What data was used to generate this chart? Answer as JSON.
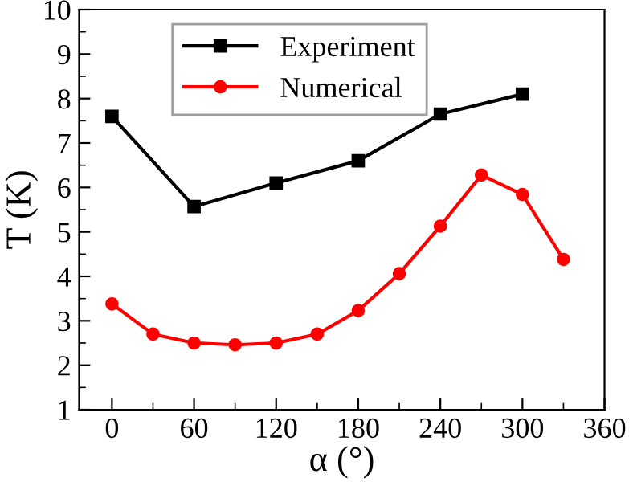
{
  "chart_data": {
    "type": "line",
    "xlabel": "α (°)",
    "ylabel": "T (K)",
    "xlim": [
      -24,
      360
    ],
    "xticks": [
      0,
      60,
      120,
      180,
      240,
      300,
      360
    ],
    "ylim": [
      1,
      10
    ],
    "yticks": [
      1,
      2,
      3,
      4,
      5,
      6,
      7,
      8,
      9,
      10
    ],
    "grid": false,
    "legend": "top left",
    "line_style": "solid",
    "series": [
      {
        "name": "Experiment",
        "color": "#000000",
        "marker": "square",
        "x": [
          0,
          60,
          120,
          180,
          240,
          300
        ],
        "values": [
          7.6,
          5.57,
          6.1,
          6.6,
          7.65,
          8.1
        ]
      },
      {
        "name": "Numerical",
        "color": "#ff0000",
        "marker": "circle",
        "x": [
          0,
          30,
          60,
          90,
          120,
          150,
          180,
          210,
          240,
          270,
          300,
          330
        ],
        "values": [
          3.38,
          2.7,
          2.5,
          2.46,
          2.5,
          2.7,
          3.23,
          4.06,
          5.13,
          6.28,
          5.84,
          4.38
        ]
      }
    ]
  }
}
